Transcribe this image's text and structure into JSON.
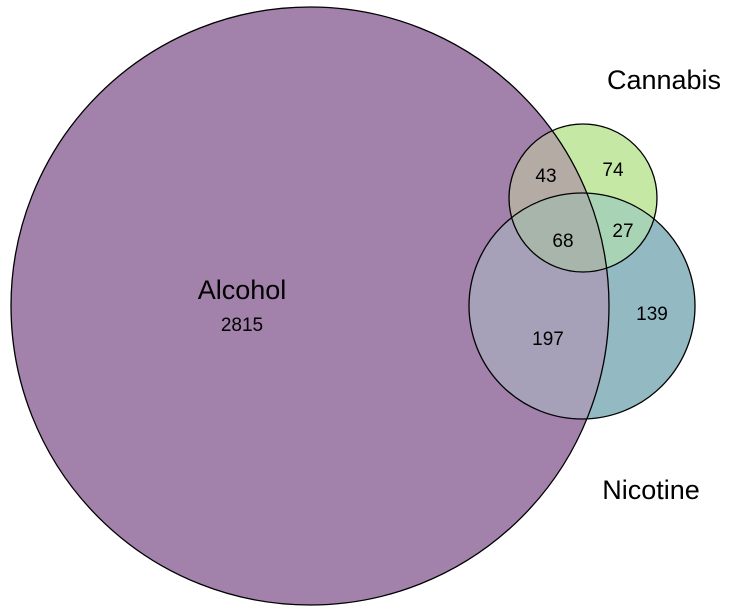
{
  "diagram": {
    "type": "venn",
    "sets": [
      {
        "key": "alcohol",
        "label": "Alcohol",
        "color": "#a281ab"
      },
      {
        "key": "cannabis",
        "label": "Cannabis",
        "color": "#c5e8a4"
      },
      {
        "key": "nicotine",
        "label": "Nicotine",
        "color": "#93bac3"
      }
    ],
    "regions": {
      "alcohol_only": "2815",
      "cannabis_only": "74",
      "nicotine_only": "139",
      "alcohol_cannabis": "43",
      "cannabis_nicotine": "27",
      "alcohol_nicotine": "197",
      "all_three": "68"
    },
    "colors": {
      "outline": "#000000",
      "alcohol_cannabis": "#b5aba5",
      "alcohol_nicotine": "#a6a0b8",
      "cannabis_nicotine": "#a9d3b5",
      "all_three": "#a8b5aa"
    }
  }
}
